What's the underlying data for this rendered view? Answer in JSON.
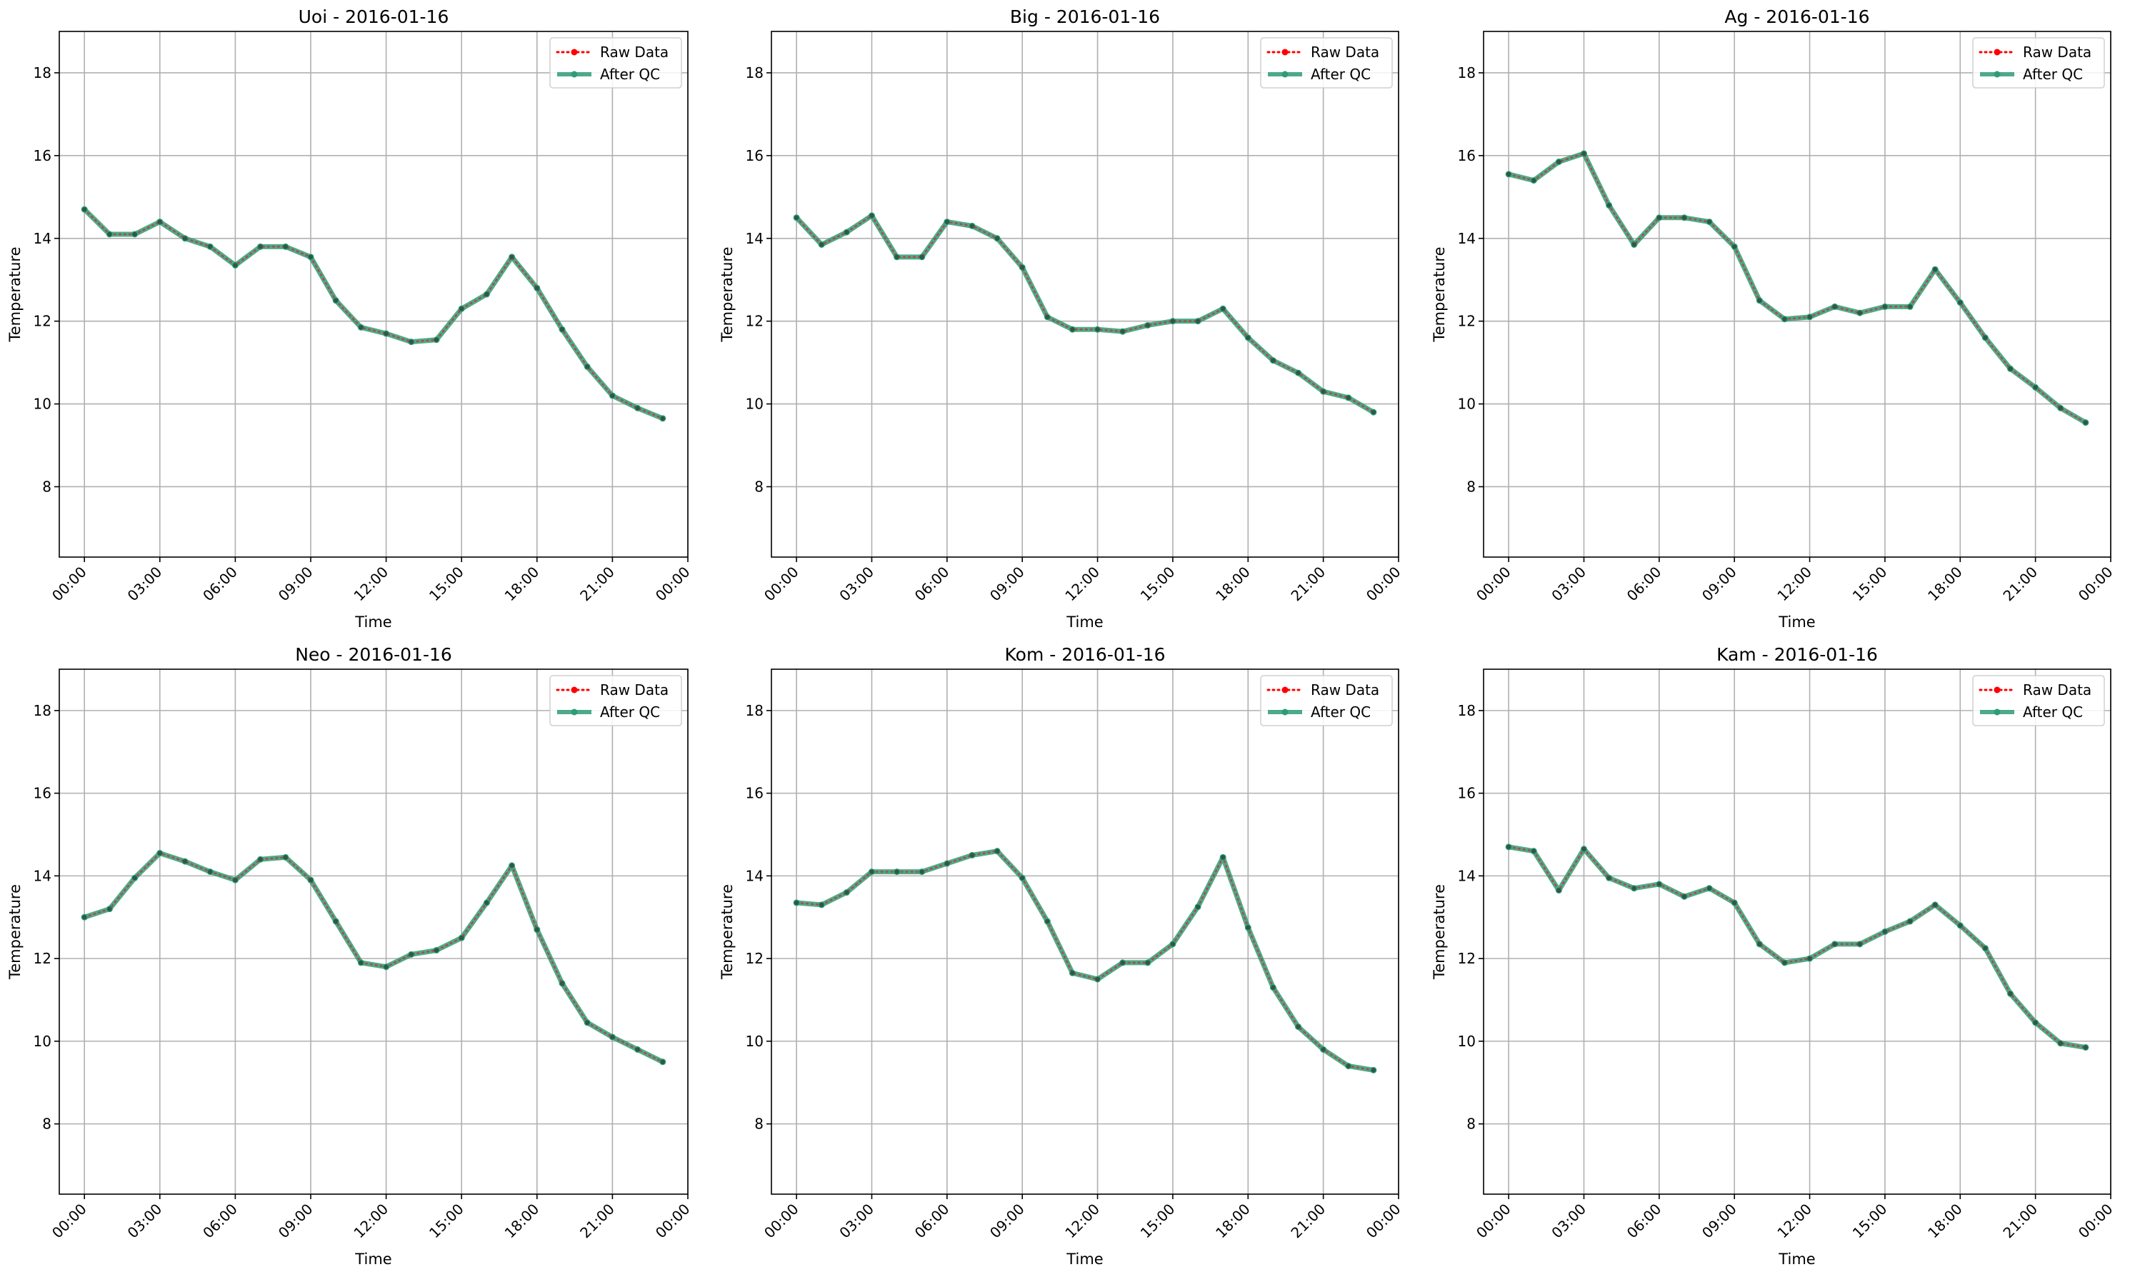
{
  "figure": {
    "background": "#ffffff"
  },
  "style": {
    "raw_color": "#ff0000",
    "qc_color": "#2e9c78",
    "grid_color": "#b0b0b0",
    "axes_color": "#000000"
  },
  "chart_data": [
    {
      "type": "line",
      "title": "Uoi - 2016-01-16",
      "xlabel": "Time",
      "ylabel": "Temperature",
      "xlim": [
        -1,
        24
      ],
      "ylim": [
        6.3,
        19.0
      ],
      "x_ticks": [
        0,
        3,
        6,
        9,
        12,
        15,
        18,
        21,
        24
      ],
      "x_ticklabels": [
        "00:00",
        "03:00",
        "06:00",
        "09:00",
        "12:00",
        "15:00",
        "18:00",
        "21:00",
        "00:00"
      ],
      "y_ticks": [
        8,
        10,
        12,
        14,
        16,
        18
      ],
      "y_ticklabels": [
        "8",
        "10",
        "12",
        "14",
        "16",
        "18"
      ],
      "grid": true,
      "legend": "top-right",
      "x": [
        0,
        1,
        2,
        3,
        4,
        5,
        6,
        7,
        8,
        9,
        10,
        11,
        12,
        13,
        14,
        15,
        16,
        17,
        18,
        19,
        20,
        21,
        22,
        23
      ],
      "series": [
        {
          "name": "Raw Data",
          "values": [
            14.7,
            14.1,
            14.1,
            14.4,
            14.0,
            13.8,
            13.35,
            13.8,
            13.8,
            13.55,
            12.5,
            11.85,
            11.7,
            11.5,
            11.55,
            12.3,
            12.65,
            13.55,
            12.8,
            11.8,
            10.9,
            10.2,
            9.9,
            9.65
          ]
        },
        {
          "name": "After QC",
          "values": [
            14.7,
            14.1,
            14.1,
            14.4,
            14.0,
            13.8,
            13.35,
            13.8,
            13.8,
            13.55,
            12.5,
            11.85,
            11.7,
            11.5,
            11.55,
            12.3,
            12.65,
            13.55,
            12.8,
            11.8,
            10.9,
            10.2,
            9.9,
            9.65
          ]
        }
      ]
    },
    {
      "type": "line",
      "title": "Big - 2016-01-16",
      "xlabel": "Time",
      "ylabel": "Temperature",
      "xlim": [
        -1,
        24
      ],
      "ylim": [
        6.3,
        19.0
      ],
      "x_ticks": [
        0,
        3,
        6,
        9,
        12,
        15,
        18,
        21,
        24
      ],
      "x_ticklabels": [
        "00:00",
        "03:00",
        "06:00",
        "09:00",
        "12:00",
        "15:00",
        "18:00",
        "21:00",
        "00:00"
      ],
      "y_ticks": [
        8,
        10,
        12,
        14,
        16,
        18
      ],
      "y_ticklabels": [
        "8",
        "10",
        "12",
        "14",
        "16",
        "18"
      ],
      "grid": true,
      "legend": "top-right",
      "x": [
        0,
        1,
        2,
        3,
        4,
        5,
        6,
        7,
        8,
        9,
        10,
        11,
        12,
        13,
        14,
        15,
        16,
        17,
        18,
        19,
        20,
        21,
        22,
        23
      ],
      "series": [
        {
          "name": "Raw Data",
          "values": [
            14.5,
            13.85,
            14.15,
            14.55,
            13.55,
            13.55,
            14.4,
            14.3,
            14.0,
            13.3,
            12.1,
            11.8,
            11.8,
            11.75,
            11.9,
            12.0,
            12.0,
            12.3,
            11.6,
            11.05,
            10.75,
            10.3,
            10.15,
            9.8
          ]
        },
        {
          "name": "After QC",
          "values": [
            14.5,
            13.85,
            14.15,
            14.55,
            13.55,
            13.55,
            14.4,
            14.3,
            14.0,
            13.3,
            12.1,
            11.8,
            11.8,
            11.75,
            11.9,
            12.0,
            12.0,
            12.3,
            11.6,
            11.05,
            10.75,
            10.3,
            10.15,
            9.8
          ]
        }
      ]
    },
    {
      "type": "line",
      "title": "Ag - 2016-01-16",
      "xlabel": "Time",
      "ylabel": "Temperature",
      "xlim": [
        -1,
        24
      ],
      "ylim": [
        6.3,
        19.0
      ],
      "x_ticks": [
        0,
        3,
        6,
        9,
        12,
        15,
        18,
        21,
        24
      ],
      "x_ticklabels": [
        "00:00",
        "03:00",
        "06:00",
        "09:00",
        "12:00",
        "15:00",
        "18:00",
        "21:00",
        "00:00"
      ],
      "y_ticks": [
        8,
        10,
        12,
        14,
        16,
        18
      ],
      "y_ticklabels": [
        "8",
        "10",
        "12",
        "14",
        "16",
        "18"
      ],
      "grid": true,
      "legend": "top-right",
      "x": [
        0,
        1,
        2,
        3,
        4,
        5,
        6,
        7,
        8,
        9,
        10,
        11,
        12,
        13,
        14,
        15,
        16,
        17,
        18,
        19,
        20,
        21,
        22,
        23
      ],
      "series": [
        {
          "name": "Raw Data",
          "values": [
            15.55,
            15.4,
            15.85,
            16.05,
            14.8,
            13.85,
            14.5,
            14.5,
            14.4,
            13.8,
            12.5,
            12.05,
            12.1,
            12.35,
            12.2,
            12.35,
            12.35,
            13.25,
            12.45,
            11.6,
            10.85,
            10.4,
            9.9,
            9.55
          ]
        },
        {
          "name": "After QC",
          "values": [
            15.55,
            15.4,
            15.85,
            16.05,
            14.8,
            13.85,
            14.5,
            14.5,
            14.4,
            13.8,
            12.5,
            12.05,
            12.1,
            12.35,
            12.2,
            12.35,
            12.35,
            13.25,
            12.45,
            11.6,
            10.85,
            10.4,
            9.9,
            9.55
          ]
        }
      ]
    },
    {
      "type": "line",
      "title": "Neo - 2016-01-16",
      "xlabel": "Time",
      "ylabel": "Temperature",
      "xlim": [
        -1,
        24
      ],
      "ylim": [
        6.3,
        19.0
      ],
      "x_ticks": [
        0,
        3,
        6,
        9,
        12,
        15,
        18,
        21,
        24
      ],
      "x_ticklabels": [
        "00:00",
        "03:00",
        "06:00",
        "09:00",
        "12:00",
        "15:00",
        "18:00",
        "21:00",
        "00:00"
      ],
      "y_ticks": [
        8,
        10,
        12,
        14,
        16,
        18
      ],
      "y_ticklabels": [
        "8",
        "10",
        "12",
        "14",
        "16",
        "18"
      ],
      "grid": true,
      "legend": "top-right",
      "x": [
        0,
        1,
        2,
        3,
        4,
        5,
        6,
        7,
        8,
        9,
        10,
        11,
        12,
        13,
        14,
        15,
        16,
        17,
        18,
        19,
        20,
        21,
        22,
        23
      ],
      "series": [
        {
          "name": "Raw Data",
          "values": [
            13.0,
            13.2,
            13.95,
            14.55,
            14.35,
            14.1,
            13.9,
            14.4,
            14.45,
            13.9,
            12.9,
            11.9,
            11.8,
            12.1,
            12.2,
            12.5,
            13.35,
            14.25,
            12.7,
            11.4,
            10.45,
            10.1,
            9.8,
            9.5
          ]
        },
        {
          "name": "After QC",
          "values": [
            13.0,
            13.2,
            13.95,
            14.55,
            14.35,
            14.1,
            13.9,
            14.4,
            14.45,
            13.9,
            12.9,
            11.9,
            11.8,
            12.1,
            12.2,
            12.5,
            13.35,
            14.25,
            12.7,
            11.4,
            10.45,
            10.1,
            9.8,
            9.5
          ]
        }
      ]
    },
    {
      "type": "line",
      "title": "Kom - 2016-01-16",
      "xlabel": "Time",
      "ylabel": "Temperature",
      "xlim": [
        -1,
        24
      ],
      "ylim": [
        6.3,
        19.0
      ],
      "x_ticks": [
        0,
        3,
        6,
        9,
        12,
        15,
        18,
        21,
        24
      ],
      "x_ticklabels": [
        "00:00",
        "03:00",
        "06:00",
        "09:00",
        "12:00",
        "15:00",
        "18:00",
        "21:00",
        "00:00"
      ],
      "y_ticks": [
        8,
        10,
        12,
        14,
        16,
        18
      ],
      "y_ticklabels": [
        "8",
        "10",
        "12",
        "14",
        "16",
        "18"
      ],
      "grid": true,
      "legend": "top-right",
      "x": [
        0,
        1,
        2,
        3,
        4,
        5,
        6,
        7,
        8,
        9,
        10,
        11,
        12,
        13,
        14,
        15,
        16,
        17,
        18,
        19,
        20,
        21,
        22,
        23
      ],
      "series": [
        {
          "name": "Raw Data",
          "values": [
            13.35,
            13.3,
            13.6,
            14.1,
            14.1,
            14.1,
            14.3,
            14.5,
            14.6,
            13.95,
            12.9,
            11.65,
            11.5,
            11.9,
            11.9,
            12.35,
            13.25,
            14.45,
            12.75,
            11.3,
            10.35,
            9.8,
            9.4,
            9.3
          ]
        },
        {
          "name": "After QC",
          "values": [
            13.35,
            13.3,
            13.6,
            14.1,
            14.1,
            14.1,
            14.3,
            14.5,
            14.6,
            13.95,
            12.9,
            11.65,
            11.5,
            11.9,
            11.9,
            12.35,
            13.25,
            14.45,
            12.75,
            11.3,
            10.35,
            9.8,
            9.4,
            9.3
          ]
        }
      ]
    },
    {
      "type": "line",
      "title": "Kam - 2016-01-16",
      "xlabel": "Time",
      "ylabel": "Temperature",
      "xlim": [
        -1,
        24
      ],
      "ylim": [
        6.3,
        19.0
      ],
      "x_ticks": [
        0,
        3,
        6,
        9,
        12,
        15,
        18,
        21,
        24
      ],
      "x_ticklabels": [
        "00:00",
        "03:00",
        "06:00",
        "09:00",
        "12:00",
        "15:00",
        "18:00",
        "21:00",
        "00:00"
      ],
      "y_ticks": [
        8,
        10,
        12,
        14,
        16,
        18
      ],
      "y_ticklabels": [
        "8",
        "10",
        "12",
        "14",
        "16",
        "18"
      ],
      "grid": true,
      "legend": "top-right",
      "x": [
        0,
        1,
        2,
        3,
        4,
        5,
        6,
        7,
        8,
        9,
        10,
        11,
        12,
        13,
        14,
        15,
        16,
        17,
        18,
        19,
        20,
        21,
        22,
        23
      ],
      "series": [
        {
          "name": "Raw Data",
          "values": [
            14.7,
            14.6,
            13.65,
            14.65,
            13.95,
            13.7,
            13.8,
            13.5,
            13.7,
            13.35,
            12.35,
            11.9,
            12.0,
            12.35,
            12.35,
            12.65,
            12.9,
            13.3,
            12.8,
            12.25,
            11.15,
            10.45,
            9.95,
            9.85
          ]
        },
        {
          "name": "After QC",
          "values": [
            14.7,
            14.6,
            13.65,
            14.65,
            13.95,
            13.7,
            13.8,
            13.5,
            13.7,
            13.35,
            12.35,
            11.9,
            12.0,
            12.35,
            12.35,
            12.65,
            12.9,
            13.3,
            12.8,
            12.25,
            11.15,
            10.45,
            9.95,
            9.85
          ]
        }
      ]
    }
  ]
}
